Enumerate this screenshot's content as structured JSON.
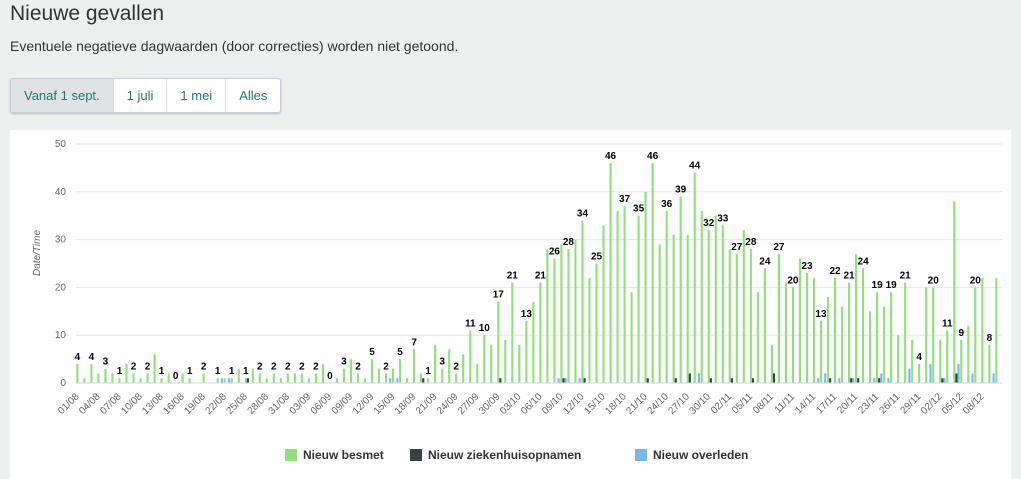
{
  "header": {
    "title": "Nieuwe gevallen",
    "subtitle": "Eventuele negatieve dagwaarden (door correcties) worden niet getoond."
  },
  "buttons": [
    "Vanaf 1 sept.",
    "1 juli",
    "1 mei",
    "Alles"
  ],
  "chart_data": {
    "type": "bar",
    "y_label": "Date/Time",
    "ylim": [
      0,
      50
    ],
    "yticks": [
      0,
      10,
      20,
      30,
      40,
      50
    ],
    "grid": true,
    "legend": "bottom",
    "categories": [
      "01/08",
      null,
      null,
      "04/08",
      null,
      null,
      "07/08",
      null,
      null,
      "10/08",
      null,
      null,
      "13/08",
      null,
      null,
      "16/08",
      null,
      null,
      "19/08",
      null,
      null,
      "22/08",
      null,
      null,
      "25/08",
      null,
      null,
      "28/08",
      null,
      null,
      "31/08",
      null,
      null,
      "03/09",
      null,
      null,
      "06/09",
      null,
      null,
      "09/09",
      null,
      null,
      "12/09",
      null,
      null,
      "15/09",
      null,
      null,
      "18/09",
      null,
      null,
      "21/09",
      null,
      null,
      "24/09",
      null,
      null,
      "27/09",
      null,
      null,
      "30/09",
      null,
      null,
      "03/10",
      null,
      null,
      "06/10",
      null,
      null,
      "09/10",
      null,
      null,
      "12/10",
      null,
      null,
      "15/10",
      null,
      null,
      "18/10",
      null,
      null,
      "21/10",
      null,
      null,
      "24/10",
      null,
      null,
      "27/10",
      null,
      null,
      "30/10",
      null,
      null,
      "02/11",
      null,
      null,
      "05/11",
      null,
      null,
      "08/11",
      null,
      null,
      "11/11",
      null,
      null,
      "14/11",
      null,
      null,
      "17/11",
      null,
      null,
      "20/11",
      null,
      null,
      "23/11",
      null,
      null,
      "26/11",
      null,
      null,
      "29/11",
      null,
      null,
      "02/12",
      null,
      null,
      "05/12",
      null,
      null,
      "08/12",
      null,
      null
    ],
    "series": [
      {
        "name": "Nieuw besmet",
        "color": "#90e07c",
        "values": [
          4,
          1,
          4,
          2,
          3,
          2,
          1,
          4,
          2,
          1,
          2,
          6,
          1,
          2,
          0,
          2,
          1,
          0,
          2,
          0,
          1,
          1,
          1,
          3,
          1,
          3,
          2,
          1,
          2,
          1,
          2,
          2,
          2,
          1,
          2,
          4,
          0,
          1,
          3,
          5,
          2,
          1,
          5,
          3,
          2,
          3,
          5,
          1,
          7,
          2,
          1,
          8,
          3,
          7,
          2,
          6,
          11,
          4,
          10,
          8,
          17,
          9,
          21,
          8,
          13,
          17,
          21,
          28,
          26,
          29,
          28,
          30,
          34,
          22,
          25,
          33,
          46,
          36,
          37,
          19,
          35,
          40,
          46,
          29,
          36,
          31,
          39,
          31,
          44,
          36,
          32,
          35,
          33,
          28,
          27,
          32,
          28,
          19,
          24,
          8,
          27,
          21,
          20,
          26,
          23,
          22,
          13,
          18,
          22,
          16,
          21,
          27,
          24,
          15,
          19,
          16,
          19,
          10,
          21,
          9,
          4,
          20,
          20,
          9,
          11,
          38,
          9,
          12,
          20,
          22,
          8,
          22
        ]
      },
      {
        "name": "Nieuw ziekenhuisopnamen",
        "color": "#3a3f46",
        "values": [
          0,
          0,
          0,
          0,
          0,
          0,
          0,
          0,
          0,
          0,
          0,
          0,
          0,
          0,
          0,
          0,
          0,
          0,
          0,
          0,
          0,
          0,
          0,
          0,
          1,
          0,
          0,
          0,
          0,
          0,
          0,
          0,
          0,
          0,
          0,
          0,
          0,
          0,
          0,
          0,
          0,
          0,
          0,
          0,
          0,
          0,
          0,
          0,
          0,
          1,
          0,
          0,
          0,
          0,
          0,
          0,
          0,
          0,
          0,
          0,
          1,
          0,
          0,
          0,
          0,
          0,
          0,
          0,
          0,
          1,
          0,
          0,
          1,
          0,
          0,
          0,
          0,
          0,
          0,
          0,
          0,
          1,
          0,
          0,
          0,
          1,
          0,
          2,
          0,
          0,
          1,
          0,
          0,
          1,
          0,
          0,
          1,
          0,
          0,
          2,
          0,
          0,
          0,
          0,
          0,
          0,
          0,
          1,
          0,
          0,
          1,
          1,
          0,
          0,
          1,
          0,
          0,
          0,
          0,
          0,
          0,
          0,
          0,
          1,
          0,
          2,
          0,
          0,
          0,
          0,
          0,
          0
        ]
      },
      {
        "name": "Nieuw overleden",
        "color": "#7cb5ec",
        "values": [
          0,
          0,
          0,
          0,
          0,
          0,
          0,
          0,
          0,
          0,
          0,
          0,
          0,
          0,
          0,
          0,
          0,
          0,
          0,
          0,
          1,
          1,
          0,
          0,
          0,
          0,
          0,
          0,
          0,
          0,
          0,
          0,
          0,
          0,
          0,
          0,
          0,
          0,
          0,
          0,
          0,
          0,
          0,
          0,
          1,
          1,
          0,
          0,
          0,
          0,
          0,
          0,
          0,
          0,
          0,
          0,
          0,
          0,
          0,
          0,
          0,
          0,
          0,
          0,
          0,
          0,
          0,
          0,
          1,
          1,
          0,
          1,
          0,
          0,
          0,
          0,
          0,
          0,
          0,
          0,
          0,
          0,
          0,
          0,
          0,
          0,
          0,
          0,
          2,
          0,
          0,
          0,
          0,
          0,
          0,
          0,
          0,
          0,
          0,
          0,
          0,
          0,
          0,
          0,
          0,
          1,
          2,
          0,
          1,
          0,
          1,
          0,
          0,
          1,
          2,
          1,
          0,
          0,
          3,
          0,
          0,
          4,
          0,
          1,
          0,
          4,
          0,
          2,
          0,
          0,
          2,
          0
        ]
      }
    ]
  }
}
